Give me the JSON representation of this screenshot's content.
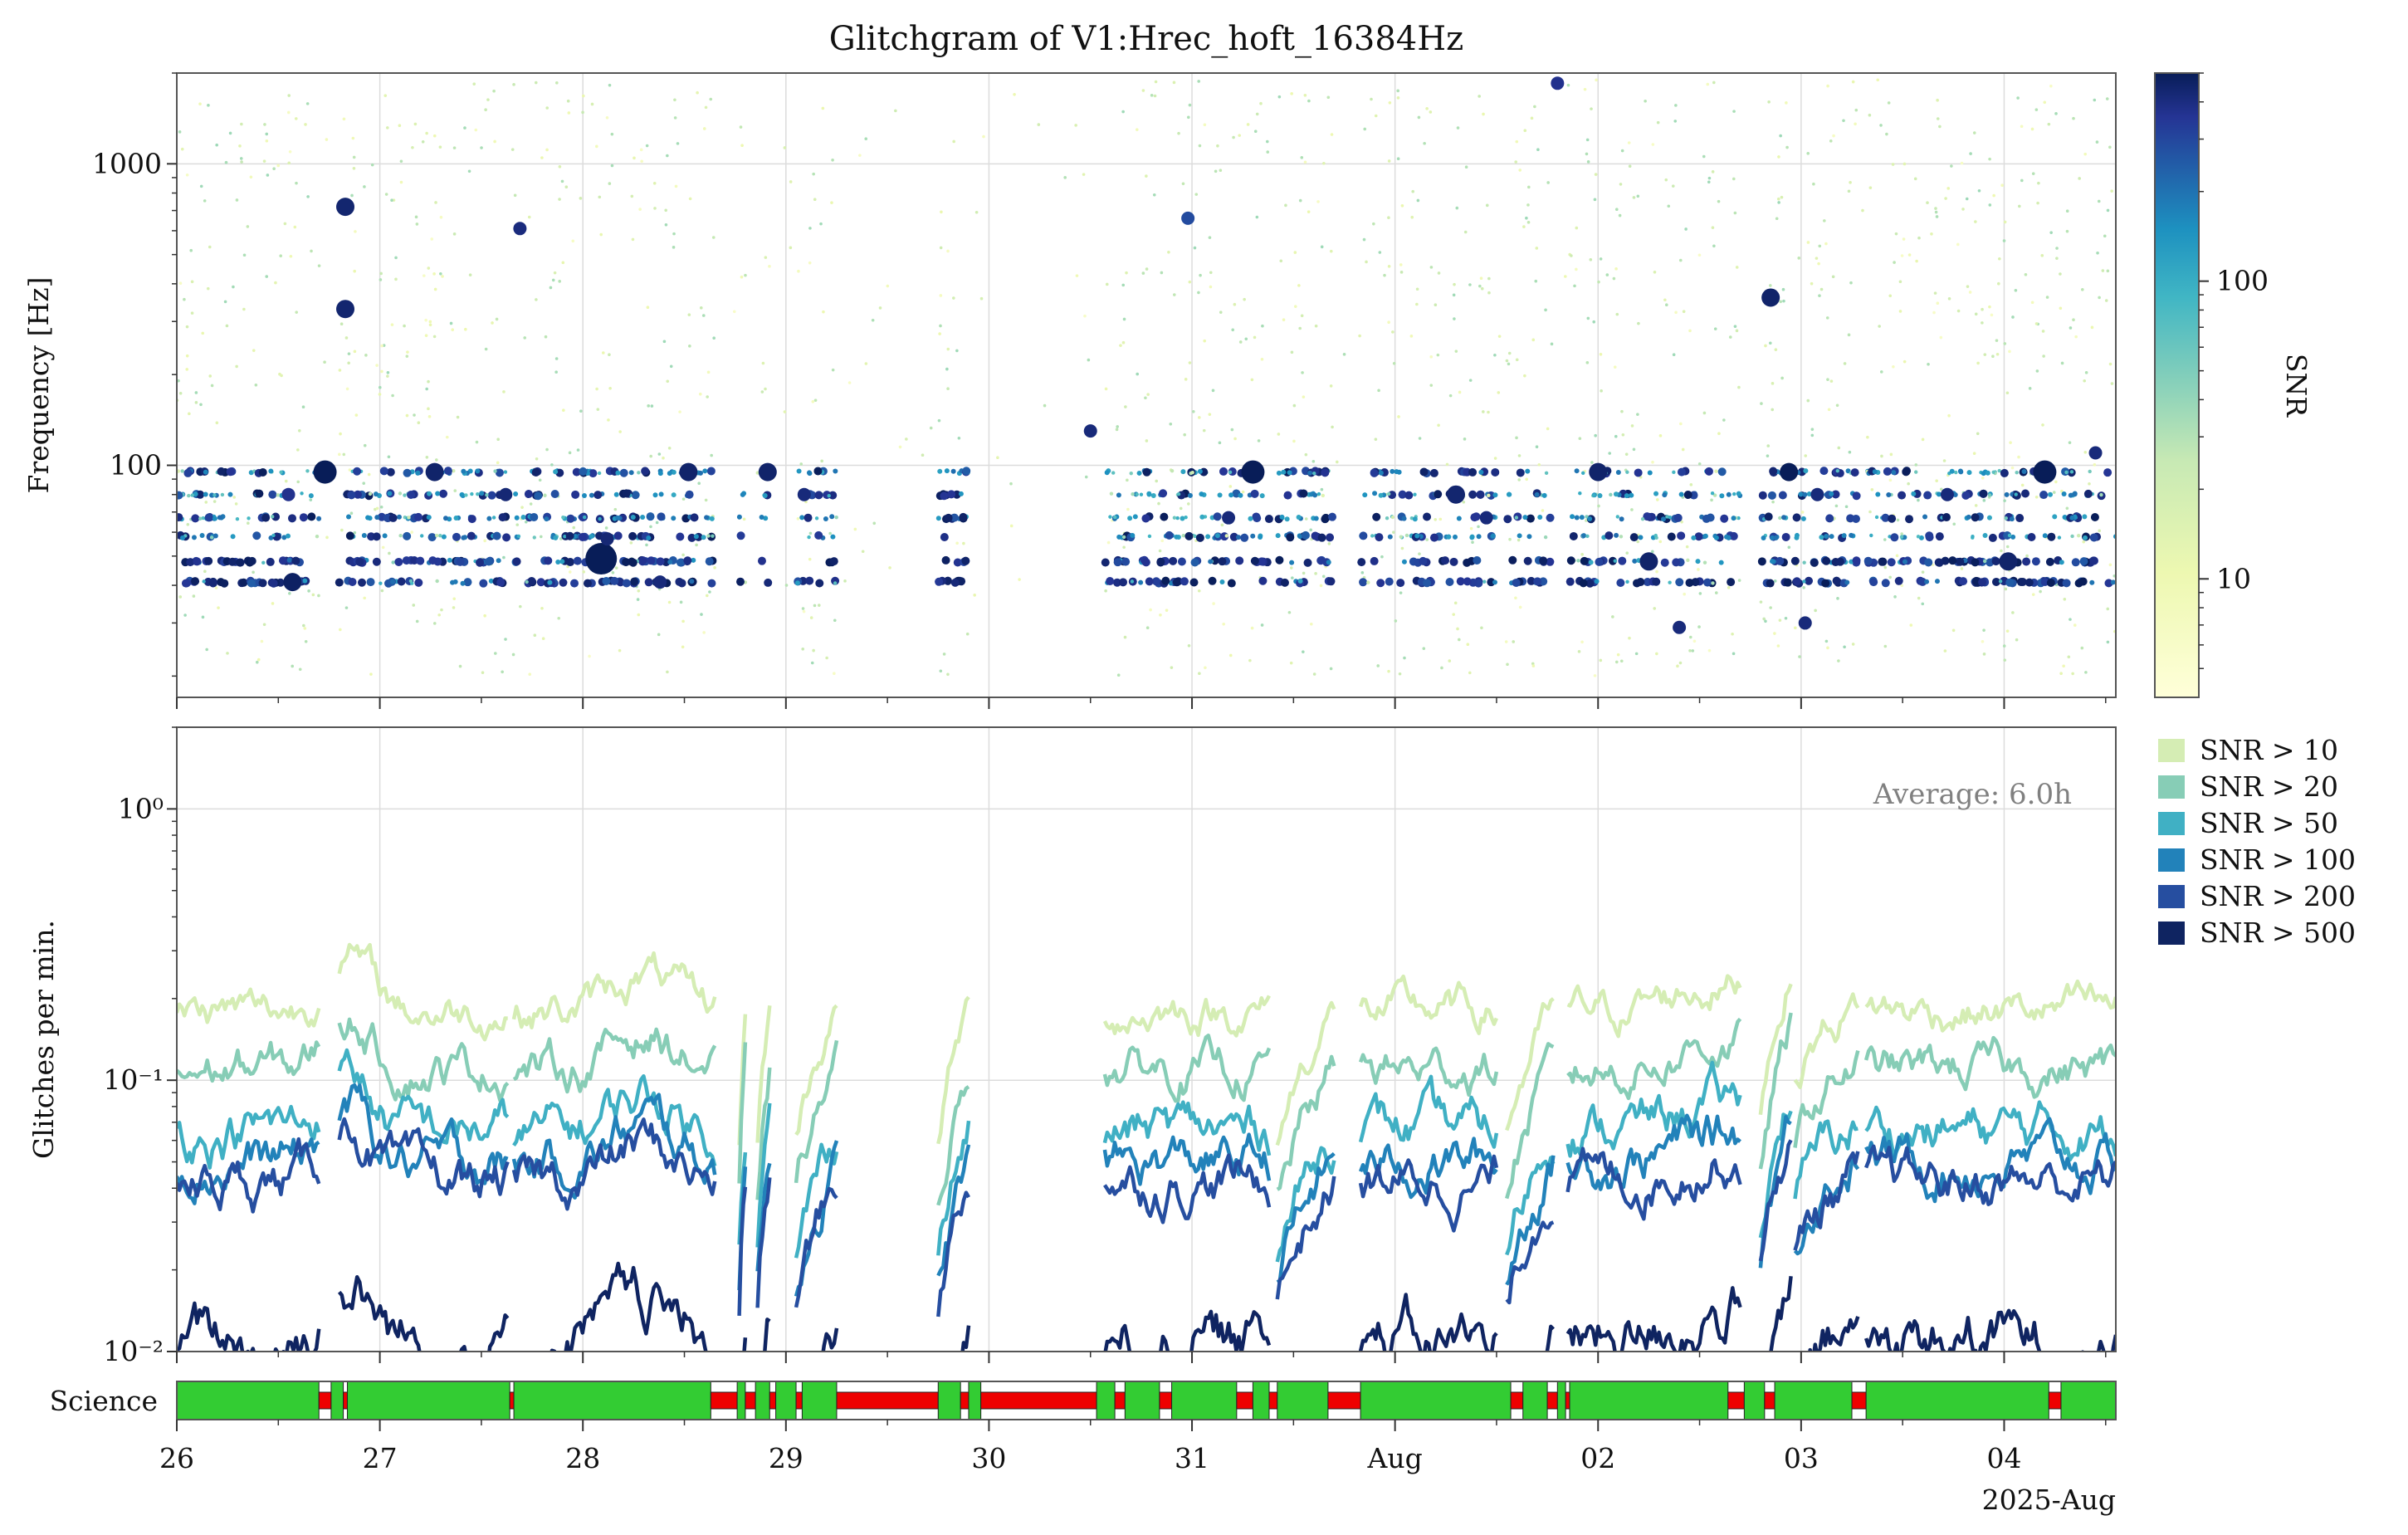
{
  "title": "Glitchgram of V1:Hrec_hoft_16384Hz",
  "colors": {
    "snr10": "#d5edb4",
    "snr20": "#87cdb6",
    "snr50": "#40b0c4",
    "snr100": "#2282ba",
    "snr200": "#264ea0",
    "snr500": "#0f2461",
    "science_on": "#33cc33",
    "science_off": "#ee0000"
  },
  "chart_data": [
    {
      "type": "scatter",
      "ylabel": "Frequency [Hz]",
      "yscale": "log",
      "ylim": [
        17,
        2000
      ],
      "xlim": [
        0,
        9.55
      ],
      "y_ticks": [
        {
          "v": 100,
          "label": "100"
        },
        {
          "v": 1000,
          "label": "1000"
        }
      ],
      "colorbar": {
        "label": "SNR",
        "scale": "log",
        "range": [
          4,
          500
        ],
        "ticks": [
          {
            "v": 10,
            "label": "10"
          },
          {
            "v": 100,
            "label": "100"
          }
        ]
      },
      "bands_hz": [
        41,
        48,
        58,
        67,
        80,
        95
      ],
      "bands_note": "",
      "highlights": [
        {
          "x": 0.55,
          "f": 80,
          "snr": 300
        },
        {
          "x": 0.73,
          "f": 95,
          "snr": 600
        },
        {
          "x": 0.83,
          "f": 720,
          "snr": 400
        },
        {
          "x": 0.83,
          "f": 330,
          "snr": 400
        },
        {
          "x": 0.57,
          "f": 41,
          "snr": 450
        },
        {
          "x": 1.27,
          "f": 95,
          "snr": 420
        },
        {
          "x": 1.62,
          "f": 80,
          "snr": 380
        },
        {
          "x": 1.69,
          "f": 610,
          "snr": 350
        },
        {
          "x": 2.09,
          "f": 49,
          "snr": 900
        },
        {
          "x": 2.12,
          "f": 57,
          "snr": 380
        },
        {
          "x": 2.38,
          "f": 41,
          "snr": 360
        },
        {
          "x": 2.52,
          "f": 95,
          "snr": 420
        },
        {
          "x": 2.91,
          "f": 95,
          "snr": 420
        },
        {
          "x": 3.09,
          "f": 80,
          "snr": 360
        },
        {
          "x": 4.5,
          "f": 130,
          "snr": 360
        },
        {
          "x": 5.18,
          "f": 67,
          "snr": 360
        },
        {
          "x": 5.3,
          "f": 95,
          "snr": 700
        },
        {
          "x": 6.3,
          "f": 80,
          "snr": 400
        },
        {
          "x": 6.45,
          "f": 67,
          "snr": 360
        },
        {
          "x": 7,
          "f": 95,
          "snr": 420
        },
        {
          "x": 7.25,
          "f": 48,
          "snr": 420
        },
        {
          "x": 7.4,
          "f": 29,
          "snr": 360
        },
        {
          "x": 7.85,
          "f": 360,
          "snr": 420
        },
        {
          "x": 7.94,
          "f": 95,
          "snr": 500
        },
        {
          "x": 8.02,
          "f": 30,
          "snr": 360
        },
        {
          "x": 8.08,
          "f": 80,
          "snr": 360
        },
        {
          "x": 8.72,
          "f": 80,
          "snr": 360
        },
        {
          "x": 9.02,
          "f": 48,
          "snr": 420
        },
        {
          "x": 9.2,
          "f": 95,
          "snr": 600
        },
        {
          "x": 9.45,
          "f": 110,
          "snr": 360
        },
        {
          "x": 6.8,
          "f": 1850,
          "snr": 300
        },
        {
          "x": 4.98,
          "f": 660,
          "snr": 200
        }
      ]
    },
    {
      "type": "line",
      "ylabel": "Glitches per min.",
      "yscale": "log",
      "ylim": [
        0.01,
        2
      ],
      "xlim": [
        0,
        9.55
      ],
      "y_ticks": [
        {
          "v": 0.01,
          "label": "10⁻²"
        },
        {
          "v": 0.1,
          "label": "10⁻¹"
        },
        {
          "v": 1,
          "label": "10⁰"
        }
      ],
      "annotation": "Average: 6.0h",
      "legend": {
        "position": "outside-right"
      },
      "segments": [
        [
          0,
          0.7
        ],
        [
          0.8,
          1.63
        ],
        [
          1.66,
          2.65
        ],
        [
          2.77,
          2.8
        ],
        [
          2.86,
          2.92
        ],
        [
          3.05,
          3.25
        ],
        [
          3.75,
          3.9
        ],
        [
          4.57,
          5.38
        ],
        [
          5.42,
          5.7
        ],
        [
          5.83,
          6.5
        ],
        [
          6.55,
          6.78
        ],
        [
          6.85,
          7.7
        ],
        [
          7.8,
          7.95
        ],
        [
          7.97,
          8.28
        ],
        [
          8.32,
          9.55
        ]
      ],
      "series": [
        {
          "name": "SNR > 10",
          "level": 0.18,
          "spread": 0.2
        },
        {
          "name": "SNR > 20",
          "level": 0.11,
          "spread": 0.22
        },
        {
          "name": "SNR > 50",
          "level": 0.065,
          "spread": 0.25
        },
        {
          "name": "SNR > 100",
          "level": 0.05,
          "spread": 0.25
        },
        {
          "name": "SNR > 200",
          "level": 0.042,
          "spread": 0.25
        },
        {
          "name": "SNR > 500",
          "level": 0.011,
          "spread": 0.3
        }
      ]
    }
  ],
  "science": {
    "label": "Science",
    "segments": [
      {
        "x0": 0,
        "x1": 0.7,
        "on": true
      },
      {
        "x0": 0.7,
        "x1": 0.76,
        "on": false
      },
      {
        "x0": 0.76,
        "x1": 0.82,
        "on": true
      },
      {
        "x0": 0.82,
        "x1": 0.84,
        "on": false
      },
      {
        "x0": 0.84,
        "x1": 1.64,
        "on": true
      },
      {
        "x0": 1.64,
        "x1": 1.66,
        "on": false
      },
      {
        "x0": 1.66,
        "x1": 2.63,
        "on": true
      },
      {
        "x0": 2.63,
        "x1": 2.76,
        "on": false
      },
      {
        "x0": 2.76,
        "x1": 2.8,
        "on": true
      },
      {
        "x0": 2.8,
        "x1": 2.85,
        "on": false
      },
      {
        "x0": 2.85,
        "x1": 2.92,
        "on": true
      },
      {
        "x0": 2.92,
        "x1": 2.95,
        "on": false
      },
      {
        "x0": 2.95,
        "x1": 3.05,
        "on": true
      },
      {
        "x0": 3.05,
        "x1": 3.08,
        "on": false
      },
      {
        "x0": 3.08,
        "x1": 3.25,
        "on": true
      },
      {
        "x0": 3.25,
        "x1": 3.75,
        "on": false
      },
      {
        "x0": 3.75,
        "x1": 3.86,
        "on": true
      },
      {
        "x0": 3.86,
        "x1": 3.9,
        "on": false
      },
      {
        "x0": 3.9,
        "x1": 3.96,
        "on": true
      },
      {
        "x0": 3.96,
        "x1": 4.53,
        "on": false
      },
      {
        "x0": 4.53,
        "x1": 4.62,
        "on": true
      },
      {
        "x0": 4.62,
        "x1": 4.67,
        "on": false
      },
      {
        "x0": 4.67,
        "x1": 4.84,
        "on": true
      },
      {
        "x0": 4.84,
        "x1": 4.9,
        "on": false
      },
      {
        "x0": 4.9,
        "x1": 5.22,
        "on": true
      },
      {
        "x0": 5.22,
        "x1": 5.3,
        "on": false
      },
      {
        "x0": 5.3,
        "x1": 5.38,
        "on": true
      },
      {
        "x0": 5.38,
        "x1": 5.42,
        "on": false
      },
      {
        "x0": 5.42,
        "x1": 5.67,
        "on": true
      },
      {
        "x0": 5.67,
        "x1": 5.83,
        "on": false
      },
      {
        "x0": 5.83,
        "x1": 6.57,
        "on": true
      },
      {
        "x0": 6.57,
        "x1": 6.63,
        "on": false
      },
      {
        "x0": 6.63,
        "x1": 6.75,
        "on": true
      },
      {
        "x0": 6.75,
        "x1": 6.8,
        "on": false
      },
      {
        "x0": 6.8,
        "x1": 6.84,
        "on": true
      },
      {
        "x0": 6.84,
        "x1": 6.86,
        "on": false
      },
      {
        "x0": 6.86,
        "x1": 7.64,
        "on": true
      },
      {
        "x0": 7.64,
        "x1": 7.72,
        "on": false
      },
      {
        "x0": 7.72,
        "x1": 7.82,
        "on": true
      },
      {
        "x0": 7.82,
        "x1": 7.87,
        "on": false
      },
      {
        "x0": 7.87,
        "x1": 8.25,
        "on": true
      },
      {
        "x0": 8.25,
        "x1": 8.32,
        "on": false
      },
      {
        "x0": 8.32,
        "x1": 9.22,
        "on": true
      },
      {
        "x0": 9.22,
        "x1": 9.28,
        "on": false
      },
      {
        "x0": 9.28,
        "x1": 9.55,
        "on": true
      }
    ]
  },
  "x_axis": {
    "xlim": [
      0,
      9.55
    ],
    "ticks": [
      {
        "v": 0,
        "label": "26"
      },
      {
        "v": 1,
        "label": "27"
      },
      {
        "v": 2,
        "label": "28"
      },
      {
        "v": 3,
        "label": "29"
      },
      {
        "v": 4,
        "label": "30"
      },
      {
        "v": 5,
        "label": "31"
      },
      {
        "v": 6,
        "label": "Aug"
      },
      {
        "v": 7,
        "label": "02"
      },
      {
        "v": 8,
        "label": "03"
      },
      {
        "v": 9,
        "label": "04"
      }
    ],
    "offset_label": "2025-Aug"
  }
}
